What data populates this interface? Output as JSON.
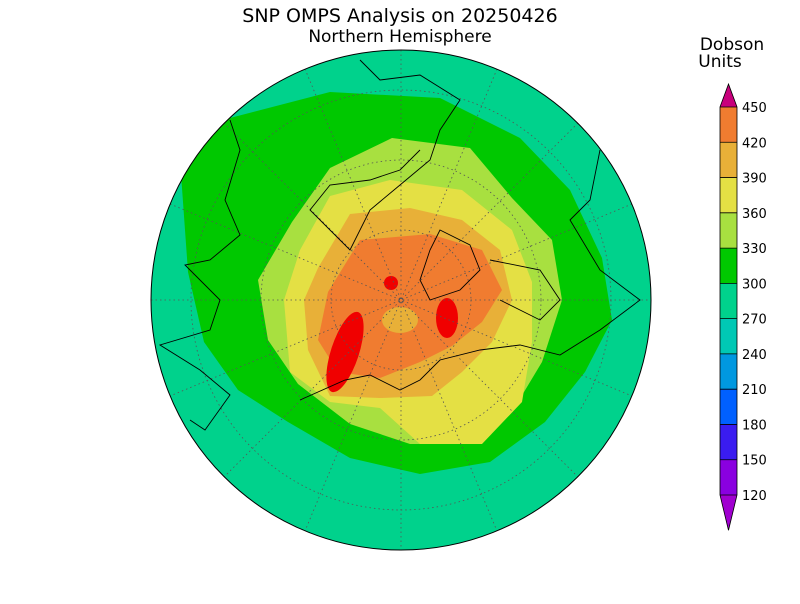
{
  "title": "SNP OMPS Analysis on 20250426",
  "subtitle": "Northern Hemisphere",
  "colorbar": {
    "label": [
      "Dobson",
      "Units"
    ],
    "ticks": [
      120,
      150,
      180,
      210,
      240,
      270,
      300,
      330,
      360,
      390,
      420,
      450
    ],
    "band_colors": [
      "#8a00e0",
      "#3a1cf0",
      "#0060ff",
      "#0098e0",
      "#00c8b4",
      "#00d28c",
      "#00c800",
      "#a8e040",
      "#e4e044",
      "#e8b038",
      "#f07c30",
      "#f00000"
    ],
    "under_color": "#a000d0",
    "over_color": "#c8007c"
  }
}
